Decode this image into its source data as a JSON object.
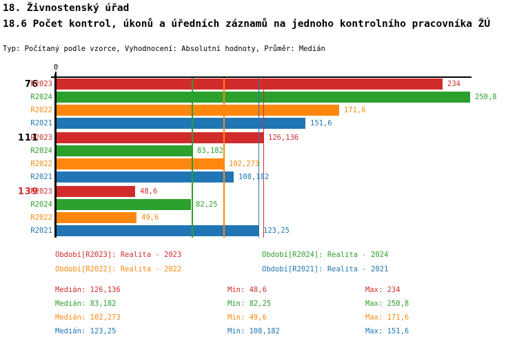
{
  "header": {
    "title": "18. Živnostenský úřad",
    "subtitle": "18.6 Počet kontrol, úkonů a úředních záznamů na jednoho kontrolního pracovníka ŽÚ",
    "meta": "Typ: Počítaný podle vzorce, Vyhodnocení: Absolutní hodnoty, Průměr: Medián"
  },
  "chart_data": {
    "type": "bar",
    "orientation": "horizontal",
    "x_axis": {
      "tick_label": "0",
      "min": 0
    },
    "grid": "median-lines-per-series",
    "series": [
      {
        "id": "R2023",
        "name": "Realita - 2023",
        "color": "#d22b2b",
        "median": 126.136
      },
      {
        "id": "R2024",
        "name": "Realita - 2024",
        "color": "#2ca02c",
        "median": 83.182
      },
      {
        "id": "R2022",
        "name": "Realita - 2022",
        "color": "#ff870f",
        "median": 102.273
      },
      {
        "id": "R2021",
        "name": "Realita - 2021",
        "color": "#2076b4",
        "median": 123.25
      }
    ],
    "groups": [
      {
        "label": "76",
        "label_color": "#000000",
        "bars": [
          {
            "series": "R2023",
            "value": 234,
            "display": "234"
          },
          {
            "series": "R2024",
            "value": 250.8,
            "display": "250,8"
          },
          {
            "series": "R2022",
            "value": 171.6,
            "display": "171,6"
          },
          {
            "series": "R2021",
            "value": 151.6,
            "display": "151,6"
          }
        ]
      },
      {
        "label": "111",
        "label_color": "#000000",
        "bars": [
          {
            "series": "R2023",
            "value": 126.136,
            "display": "126,136"
          },
          {
            "series": "R2024",
            "value": 83.182,
            "display": "83,182"
          },
          {
            "series": "R2022",
            "value": 102.273,
            "display": "102,273"
          },
          {
            "series": "R2021",
            "value": 108.182,
            "display": "108,182"
          }
        ]
      },
      {
        "label": "139",
        "label_color": "#d22b2b",
        "bars": [
          {
            "series": "R2023",
            "value": 48.6,
            "display": "48,6"
          },
          {
            "series": "R2024",
            "value": 82.25,
            "display": "82,25"
          },
          {
            "series": "R2022",
            "value": 49.6,
            "display": "49,6"
          },
          {
            "series": "R2021",
            "value": 123.25,
            "display": "123,25"
          }
        ]
      }
    ]
  },
  "legend": {
    "items": [
      {
        "series": "R2023",
        "label": "Období[R2023]: Realita - 2023"
      },
      {
        "series": "R2024",
        "label": "Období[R2024]: Realita - 2024"
      },
      {
        "series": "R2022",
        "label": "Období[R2022]: Realita - 2022"
      },
      {
        "series": "R2021",
        "label": "Období[R2021]: Realita - 2021"
      }
    ]
  },
  "stats": {
    "labels": {
      "median": "Medián:",
      "min": "Min:",
      "max": "Max:"
    },
    "rows": [
      {
        "series": "R2023",
        "median": "126,136",
        "min": "48,6",
        "max": "234"
      },
      {
        "series": "R2024",
        "median": "83,182",
        "min": "82,25",
        "max": "250,8"
      },
      {
        "series": "R2022",
        "median": "102,273",
        "min": "49,6",
        "max": "171,6"
      },
      {
        "series": "R2021",
        "median": "123,25",
        "min": "108,182",
        "max": "151,6"
      }
    ]
  }
}
